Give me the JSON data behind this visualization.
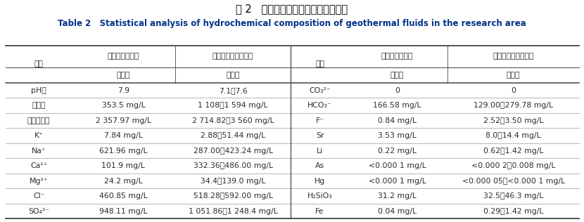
{
  "title_cn": "表 2   研究区地热流体水化学成分统计",
  "title_en": "Table 2   Statistical analysis of hydrochemical composition of geothermal fluids in the research area",
  "left_rows": [
    [
      "pH值",
      "7.9",
      "7.1～7.6"
    ],
    [
      "总硬度",
      "353.5 mg/L",
      "1 108～1 594 mg/L"
    ],
    [
      "溶解总固体",
      "2 357.97 mg/L",
      "2 714.82～3 560 mg/L"
    ],
    [
      "K⁺",
      "7.84 mg/L",
      "2.88～51.44 mg/L"
    ],
    [
      "Na⁺",
      "621.96 mg/L",
      "287.00～423.24 mg/L"
    ],
    [
      "Ca²⁺",
      "101.9 mg/L",
      "332.36～486.00 mg/L"
    ],
    [
      "Mg²⁺",
      "24.2 mg/L",
      "34.4～139.0 mg/L"
    ],
    [
      "Cl⁻",
      "460.85 mg/L",
      "518.28～592.00 mg/L"
    ],
    [
      "SO₄²⁻",
      "948.11 mg/L",
      "1 051.86～1 248.4 mg/L"
    ]
  ],
  "right_rows": [
    [
      "CO₃²⁻",
      "0",
      "0"
    ],
    [
      "HCO₃⁻",
      "166.58 mg/L",
      "129.00～279.78 mg/L"
    ],
    [
      "F⁻",
      "0.84 mg/L",
      "2.52～3.50 mg/L"
    ],
    [
      "Sr",
      "3.53 mg/L",
      "8.0～14.4 mg/L"
    ],
    [
      "Li",
      "0.22 mg/L",
      "0.62～1.42 mg/L"
    ],
    [
      "As",
      "<0.000 1 mg/L",
      "<0.000 2～0.008 mg/L"
    ],
    [
      "Hg",
      "<0.000 1 mg/L",
      "<0.000 05～<0.000 1 mg/L"
    ],
    [
      "H₂SiO₃",
      "31.2 mg/L",
      "32.5～46.3 mg/L"
    ],
    [
      "Fe",
      "0.04 mg/L",
      "0.29～1.42 mg/L"
    ]
  ],
  "header_left_col0": "项目",
  "header_left_col1": "新生界砂岩热储",
  "header_left_col2": "古生界碳酸盐岩热储",
  "header_right_col0": "项目",
  "header_right_col1": "新生界砂岩热储",
  "header_right_col2": "古生界碳酸盐岩热储",
  "subheader": "范围値",
  "bg_color": "#ffffff",
  "text_color": "#2b2b2b",
  "title_en_color": "#003087",
  "line_color": "#444444",
  "thin_line_color": "#999999"
}
